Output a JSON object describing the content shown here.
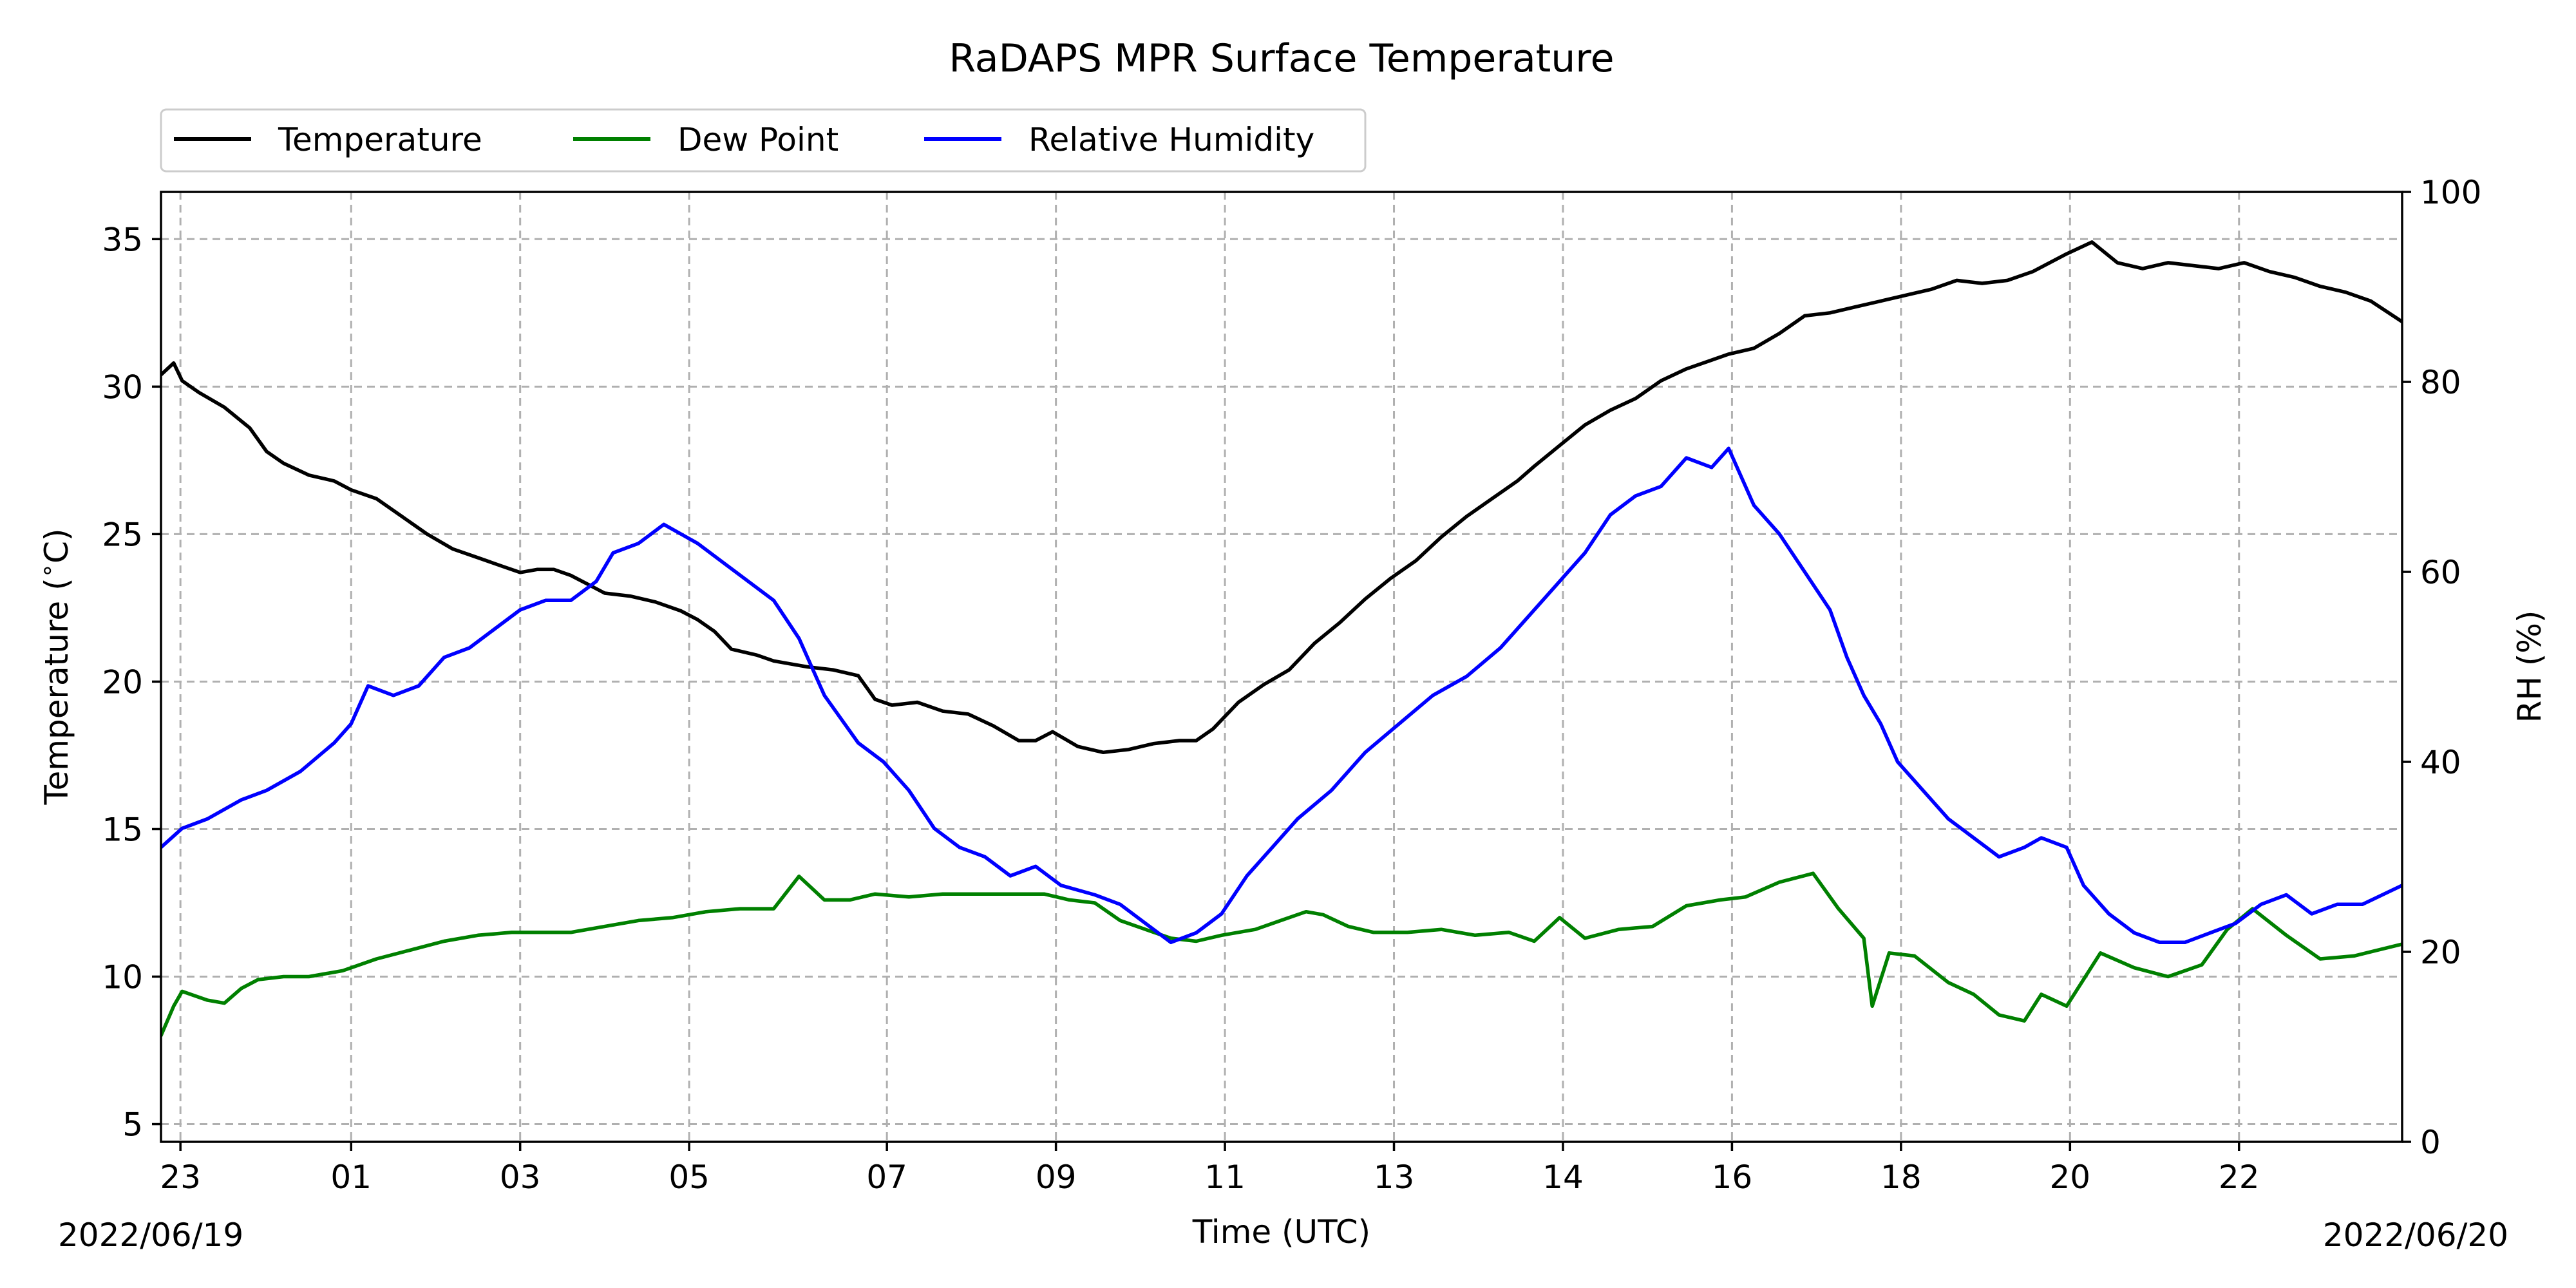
{
  "chart_data": {
    "type": "line",
    "title": "RaDAPS MPR Surface Temperature",
    "xlabel": "Time (UTC)",
    "ylabel_left": "Temperature ($^\\circ$C)",
    "ylabel_right": "RH (%)",
    "date_start": "2022/06/19",
    "date_end": "2022/06/20",
    "x_ticks": [
      "23",
      "01",
      "03",
      "05",
      "07",
      "09",
      "11",
      "13",
      "14",
      "16",
      "18",
      "20",
      "22"
    ],
    "x_tick_hours": [
      22.98,
      25.0,
      27.0,
      29.0,
      31.34,
      33.34,
      35.34,
      37.34,
      39.34,
      41.34,
      43.34,
      45.34,
      47.34
    ],
    "xlim_hours": [
      22.75,
      49.27
    ],
    "ylim_left": [
      4.4,
      36.6
    ],
    "yticks_left": [
      5,
      10,
      15,
      20,
      25,
      30,
      35
    ],
    "ylim_right": [
      0,
      100
    ],
    "yticks_right": [
      0,
      20,
      40,
      60,
      80,
      100
    ],
    "grid": true,
    "legend_position": "top-left, above plot",
    "series": [
      {
        "name": "Temperature",
        "color": "#000000",
        "axis": "left",
        "x": [
          22.75,
          22.9,
          23.0,
          23.2,
          23.5,
          23.8,
          24.0,
          24.2,
          24.5,
          24.8,
          25.0,
          25.3,
          25.6,
          25.9,
          26.2,
          26.5,
          26.8,
          27.0,
          27.2,
          27.4,
          27.6,
          27.8,
          28.0,
          28.3,
          28.6,
          28.9,
          29.1,
          29.3,
          29.5,
          29.8,
          30.0,
          30.2,
          30.4,
          30.7,
          31.0,
          31.2,
          31.4,
          31.7,
          32.0,
          32.3,
          32.6,
          32.9,
          33.1,
          33.3,
          33.6,
          33.9,
          34.2,
          34.5,
          34.8,
          35.0,
          35.2,
          35.5,
          35.8,
          36.1,
          36.4,
          36.7,
          37.0,
          37.3,
          37.6,
          37.9,
          38.2,
          38.5,
          38.8,
          39.0,
          39.3,
          39.6,
          39.9,
          40.2,
          40.5,
          40.8,
          41.1,
          41.3,
          41.6,
          41.9,
          42.2,
          42.5,
          42.8,
          43.1,
          43.4,
          43.7,
          44.0,
          44.3,
          44.6,
          44.9,
          45.1,
          45.3,
          45.6,
          45.9,
          46.2,
          46.5,
          46.8,
          47.1,
          47.4,
          47.7,
          48.0,
          48.3,
          48.6,
          48.9,
          49.27
        ],
        "values": [
          30.4,
          30.8,
          30.2,
          29.8,
          29.3,
          28.6,
          27.8,
          27.4,
          27.0,
          26.8,
          26.5,
          26.2,
          25.6,
          25.0,
          24.5,
          24.2,
          23.9,
          23.7,
          23.8,
          23.8,
          23.6,
          23.3,
          23.0,
          22.9,
          22.7,
          22.4,
          22.1,
          21.7,
          21.1,
          20.9,
          20.7,
          20.6,
          20.5,
          20.4,
          20.2,
          19.4,
          19.2,
          19.3,
          19.0,
          18.9,
          18.5,
          18.0,
          18.0,
          18.3,
          17.8,
          17.6,
          17.7,
          17.9,
          18.0,
          18.0,
          18.4,
          19.3,
          19.9,
          20.4,
          21.3,
          22.0,
          22.8,
          23.5,
          24.1,
          24.9,
          25.6,
          26.2,
          26.8,
          27.3,
          28.0,
          28.7,
          29.2,
          29.6,
          30.2,
          30.6,
          30.9,
          31.1,
          31.3,
          31.8,
          32.4,
          32.5,
          32.7,
          32.9,
          33.1,
          33.3,
          33.6,
          33.5,
          33.6,
          33.9,
          34.2,
          34.5,
          34.9,
          34.2,
          34.0,
          34.2,
          34.1,
          34.0,
          34.2,
          33.9,
          33.7,
          33.4,
          33.2,
          32.9,
          32.2
        ]
      },
      {
        "name": "Dew Point",
        "color": "#008000",
        "axis": "left",
        "x": [
          22.75,
          22.9,
          23.0,
          23.3,
          23.5,
          23.7,
          23.9,
          24.2,
          24.5,
          24.9,
          25.3,
          25.7,
          26.1,
          26.5,
          26.9,
          27.2,
          27.6,
          28.0,
          28.4,
          28.8,
          29.2,
          29.6,
          30.0,
          30.3,
          30.6,
          30.9,
          31.2,
          31.6,
          32.0,
          32.4,
          32.8,
          33.2,
          33.5,
          33.8,
          34.1,
          34.4,
          34.7,
          35.0,
          35.3,
          35.7,
          36.0,
          36.3,
          36.5,
          36.8,
          37.1,
          37.5,
          37.9,
          38.3,
          38.7,
          39.0,
          39.3,
          39.6,
          40.0,
          40.4,
          40.8,
          41.2,
          41.5,
          41.9,
          42.3,
          42.6,
          42.9,
          43.0,
          43.2,
          43.5,
          43.9,
          44.2,
          44.5,
          44.8,
          45.0,
          45.3,
          45.7,
          46.1,
          46.5,
          46.9,
          47.2,
          47.5,
          47.9,
          48.3,
          48.7,
          49.27
        ],
        "values": [
          8.0,
          9.0,
          9.5,
          9.2,
          9.1,
          9.6,
          9.9,
          10.0,
          10.0,
          10.2,
          10.6,
          10.9,
          11.2,
          11.4,
          11.5,
          11.5,
          11.5,
          11.7,
          11.9,
          12.0,
          12.2,
          12.3,
          12.3,
          13.4,
          12.6,
          12.6,
          12.8,
          12.7,
          12.8,
          12.8,
          12.8,
          12.8,
          12.6,
          12.5,
          11.9,
          11.6,
          11.3,
          11.2,
          11.4,
          11.6,
          11.9,
          12.2,
          12.1,
          11.7,
          11.5,
          11.5,
          11.6,
          11.4,
          11.5,
          11.2,
          12.0,
          11.3,
          11.6,
          11.7,
          12.4,
          12.6,
          12.7,
          13.2,
          13.5,
          12.3,
          11.3,
          9.0,
          10.8,
          10.7,
          9.8,
          9.4,
          8.7,
          8.5,
          9.4,
          9.0,
          10.8,
          10.3,
          10.0,
          10.4,
          11.6,
          12.3,
          11.4,
          10.6,
          10.7,
          11.1
        ]
      },
      {
        "name": "Relative Humidity",
        "color": "#0000ff",
        "axis": "right",
        "x": [
          22.75,
          23.0,
          23.3,
          23.7,
          24.0,
          24.4,
          24.8,
          25.0,
          25.2,
          25.5,
          25.8,
          26.1,
          26.4,
          26.7,
          27.0,
          27.3,
          27.6,
          27.9,
          28.1,
          28.4,
          28.7,
          28.9,
          29.1,
          29.4,
          29.7,
          30.0,
          30.3,
          30.6,
          31.0,
          31.3,
          31.6,
          31.9,
          32.2,
          32.5,
          32.8,
          33.1,
          33.4,
          33.8,
          34.1,
          34.4,
          34.7,
          35.0,
          35.3,
          35.6,
          35.9,
          36.2,
          36.6,
          37.0,
          37.4,
          37.8,
          38.2,
          38.6,
          39.0,
          39.3,
          39.6,
          39.9,
          40.2,
          40.5,
          40.8,
          41.1,
          41.3,
          41.6,
          41.9,
          42.2,
          42.5,
          42.7,
          42.9,
          43.1,
          43.3,
          43.6,
          43.9,
          44.2,
          44.5,
          44.8,
          45.0,
          45.3,
          45.5,
          45.8,
          46.1,
          46.4,
          46.7,
          47.0,
          47.3,
          47.6,
          47.9,
          48.2,
          48.5,
          48.8,
          49.27
        ],
        "values": [
          31,
          33,
          34,
          36,
          37,
          39,
          42,
          44,
          48,
          47,
          48,
          51,
          52,
          54,
          56,
          57,
          57,
          59,
          62,
          63,
          65,
          64,
          63,
          61,
          59,
          57,
          53,
          47,
          42,
          40,
          37,
          33,
          31,
          30,
          28,
          29,
          27,
          26,
          25,
          23,
          21,
          22,
          24,
          28,
          31,
          34,
          37,
          41,
          44,
          47,
          49,
          52,
          56,
          59,
          62,
          66,
          68,
          69,
          72,
          71,
          73,
          67,
          64,
          60,
          56,
          51,
          47,
          44,
          40,
          37,
          34,
          32,
          30,
          31,
          32,
          31,
          27,
          24,
          22,
          21,
          21,
          22,
          23,
          25,
          26,
          24,
          25,
          25,
          27
        ]
      }
    ]
  }
}
